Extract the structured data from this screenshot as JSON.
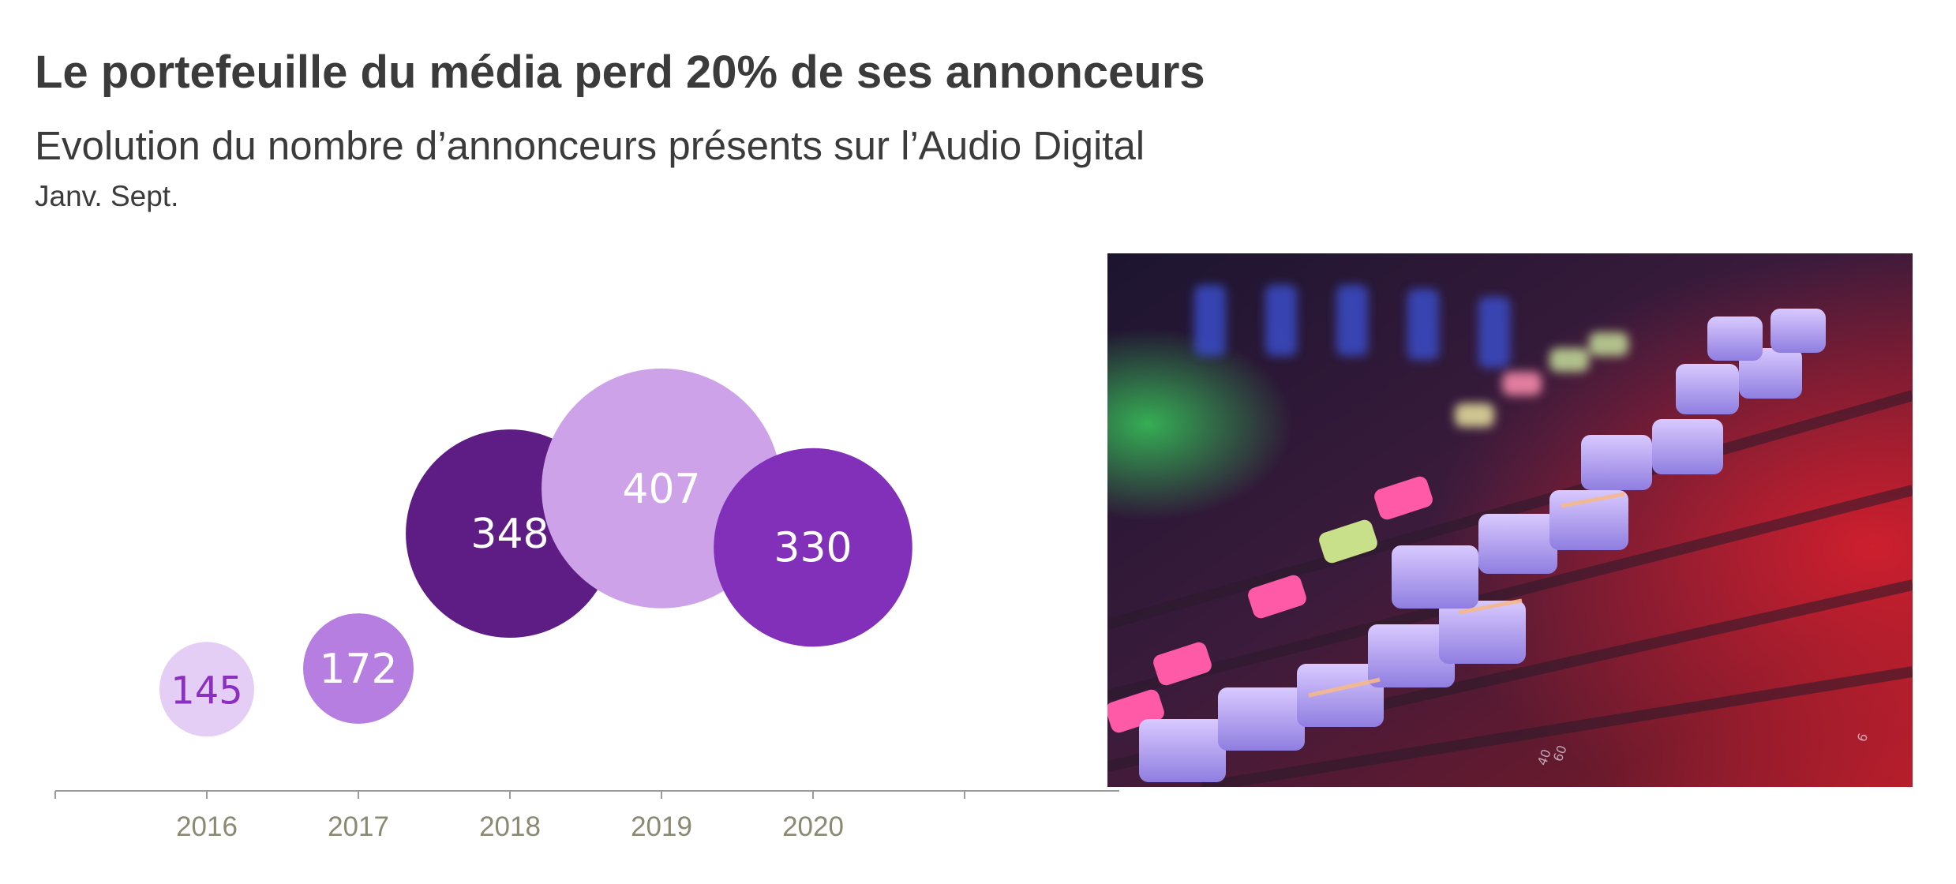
{
  "title": "Le portefeuille du média perd 20% de ses annonceurs",
  "subtitle": "Evolution du nombre d’annonceurs présents sur l’Audio Digital",
  "period": "Janv. Sept.",
  "image": {
    "icon": "audio-mixer-photo"
  },
  "chart_data": {
    "type": "bubble",
    "categories": [
      "2016",
      "2017",
      "2018",
      "2019",
      "2020"
    ],
    "values": [
      145,
      172,
      348,
      407,
      330
    ],
    "labels": [
      "145",
      "172",
      "348",
      "407",
      "330"
    ],
    "colors": [
      "#e4cef5",
      "#b57ee0",
      "#5e1d84",
      "#cda2e8",
      "#8230ba"
    ],
    "label_colors": [
      "#8a2fc0",
      "#ffffff",
      "#ffffff",
      "#ffffff",
      "#ffffff"
    ],
    "ylim": [
      100,
      450
    ],
    "xlabel": "",
    "ylabel": ""
  }
}
